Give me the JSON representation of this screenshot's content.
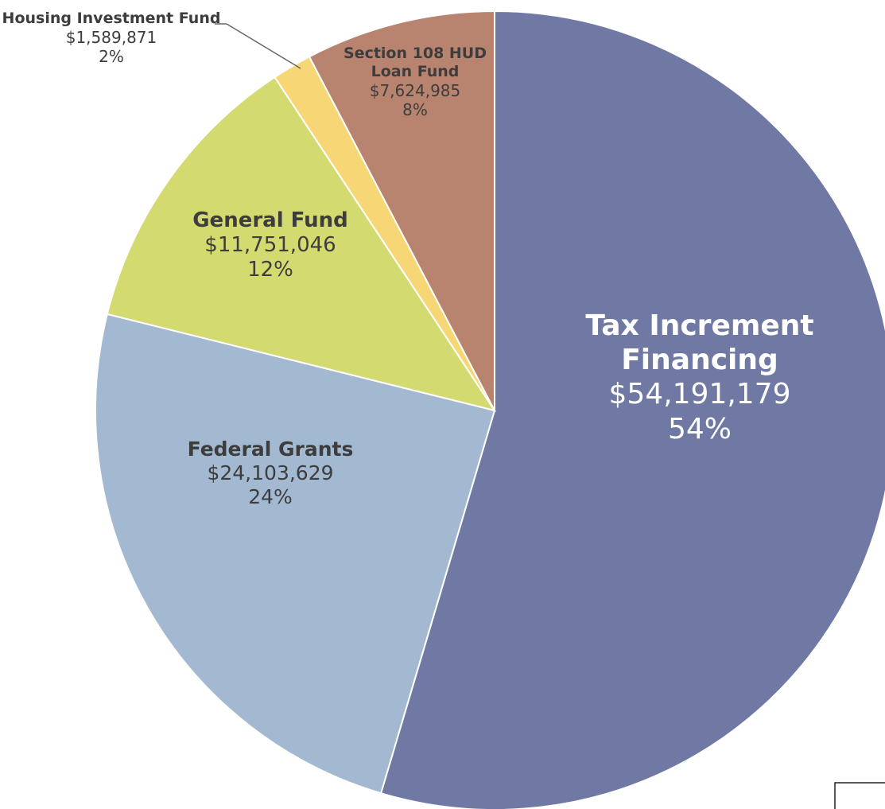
{
  "chart_data": {
    "type": "pie",
    "categories": [
      "Tax Increment Financing",
      "Federal Grants",
      "General Fund",
      "Housing Investment Fund",
      "Section 108 HUD Loan Fund"
    ],
    "values": [
      54191179,
      24103629,
      11751046,
      1589871,
      7624985
    ],
    "value_labels": [
      "$54,191,179",
      "$24,103,629",
      "$11,751,046",
      "$1,589,871",
      "$7,624,985"
    ],
    "percent_labels": [
      "54%",
      "24%",
      "12%",
      "2%",
      "8%"
    ],
    "colors": [
      "#6f79a3",
      "#a2b9d1",
      "#d3da70",
      "#f7d675",
      "#b8836f"
    ]
  }
}
